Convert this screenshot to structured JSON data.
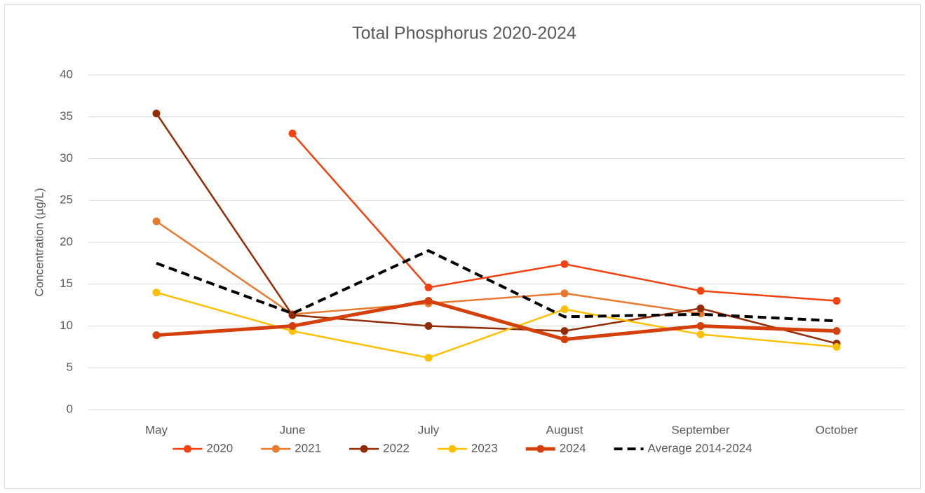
{
  "chart_data": {
    "type": "line",
    "title": "Total Phosphorus 2020-2024",
    "y_label": "Concentration (µg/L)",
    "categories": [
      "May",
      "June",
      "July",
      "August",
      "September",
      "October"
    ],
    "ylim": [
      0,
      40
    ],
    "yticks": [
      0,
      5,
      10,
      15,
      20,
      25,
      30,
      35,
      40
    ],
    "grid": true,
    "legend": "bottom",
    "series": [
      {
        "name": "2020",
        "color": "#f5400f",
        "line_width": 2.5,
        "marker": true,
        "dashed": false,
        "values": [
          null,
          33.0,
          14.6,
          17.4,
          14.2,
          13.0
        ]
      },
      {
        "name": "2021",
        "color": "#e87a30",
        "line_width": 2.5,
        "marker": true,
        "dashed": false,
        "values": [
          22.5,
          11.4,
          12.7,
          13.9,
          11.5,
          null
        ]
      },
      {
        "name": "2022",
        "color": "#932b05",
        "line_width": 2.5,
        "marker": true,
        "dashed": false,
        "values": [
          35.4,
          11.3,
          10.0,
          9.4,
          12.1,
          7.9
        ]
      },
      {
        "name": "2023",
        "color": "#ffc000",
        "line_width": 2.5,
        "marker": true,
        "dashed": false,
        "values": [
          14.0,
          9.4,
          6.2,
          12.0,
          9.0,
          7.5
        ]
      },
      {
        "name": "2024",
        "color": "#d43f0a",
        "line_width": 5,
        "marker": true,
        "dashed": false,
        "values": [
          8.9,
          10.0,
          13.0,
          8.4,
          10.0,
          9.4
        ]
      },
      {
        "name": "Average 2014-2024",
        "color": "#000000",
        "line_width": 4,
        "marker": false,
        "dashed": true,
        "values": [
          17.5,
          11.5,
          19.0,
          11.1,
          11.4,
          10.6
        ]
      }
    ]
  }
}
